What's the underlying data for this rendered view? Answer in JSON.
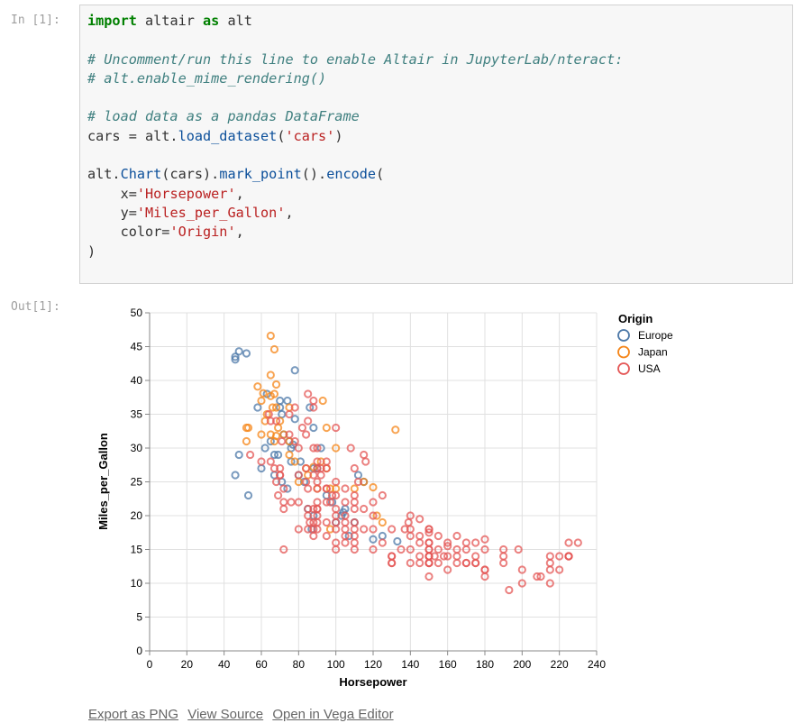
{
  "cell": {
    "in_prompt": "In [1]:",
    "out_prompt": "Out[1]:"
  },
  "code_lines": [
    [
      {
        "t": "import",
        "c": "kw"
      },
      {
        "t": " altair "
      },
      {
        "t": "as",
        "c": "kw"
      },
      {
        "t": " alt"
      }
    ],
    [],
    [
      {
        "t": "# Uncomment/run this line to enable Altair in JupyterLab/nteract:",
        "c": "cm"
      }
    ],
    [
      {
        "t": "# alt.enable_mime_rendering()",
        "c": "cm"
      }
    ],
    [],
    [
      {
        "t": "# load data as a pandas DataFrame",
        "c": "cm"
      }
    ],
    [
      {
        "t": "cars = alt."
      },
      {
        "t": "load_dataset",
        "c": "fn"
      },
      {
        "t": "("
      },
      {
        "t": "'cars'",
        "c": "st"
      },
      {
        "t": ")"
      }
    ],
    [],
    [
      {
        "t": "alt."
      },
      {
        "t": "Chart",
        "c": "fn"
      },
      {
        "t": "(cars)."
      },
      {
        "t": "mark_point",
        "c": "fn"
      },
      {
        "t": "()."
      },
      {
        "t": "encode",
        "c": "fn"
      },
      {
        "t": "("
      }
    ],
    [
      {
        "t": "    x="
      },
      {
        "t": "'Horsepower'",
        "c": "st"
      },
      {
        "t": ","
      }
    ],
    [
      {
        "t": "    y="
      },
      {
        "t": "'Miles_per_Gallon'",
        "c": "st"
      },
      {
        "t": ","
      }
    ],
    [
      {
        "t": "    color="
      },
      {
        "t": "'Origin'",
        "c": "st"
      },
      {
        "t": ","
      }
    ],
    [
      {
        "t": ")"
      }
    ]
  ],
  "links": {
    "export_png": "Export as PNG",
    "view_source": "View Source",
    "open_editor": "Open in Vega Editor"
  },
  "colors": {
    "Europe": "#4c78a8",
    "Japan": "#f58518",
    "USA": "#e45756"
  },
  "chart_data": {
    "type": "scatter",
    "xlabel": "Horsepower",
    "ylabel": "Miles_per_Gallon",
    "xlim": [
      0,
      240
    ],
    "ylim": [
      0,
      50
    ],
    "xticks": [
      0,
      20,
      40,
      60,
      80,
      100,
      120,
      140,
      160,
      180,
      200,
      220,
      240
    ],
    "yticks": [
      0,
      5,
      10,
      15,
      20,
      25,
      30,
      35,
      40,
      45,
      50
    ],
    "grid": true,
    "legend": {
      "title": "Origin",
      "placement": "top-right",
      "entries": [
        "Europe",
        "Japan",
        "USA"
      ]
    },
    "series": [
      {
        "name": "Europe",
        "points": [
          [
            46,
            43.5
          ],
          [
            48,
            44.3
          ],
          [
            46,
            43.1
          ],
          [
            52,
            44
          ],
          [
            78,
            41.5
          ],
          [
            46,
            26
          ],
          [
            48,
            29
          ],
          [
            53,
            23
          ],
          [
            58,
            36
          ],
          [
            60,
            27
          ],
          [
            62,
            30
          ],
          [
            65,
            31
          ],
          [
            67,
            26
          ],
          [
            69,
            29
          ],
          [
            70,
            36
          ],
          [
            70,
            37
          ],
          [
            71,
            25
          ],
          [
            72,
            32
          ],
          [
            74,
            24
          ],
          [
            75,
            31
          ],
          [
            76,
            28
          ],
          [
            76,
            30
          ],
          [
            77,
            30.5
          ],
          [
            78,
            34.3
          ],
          [
            80,
            26
          ],
          [
            81,
            28
          ],
          [
            83,
            25
          ],
          [
            85,
            21
          ],
          [
            86,
            36
          ],
          [
            87,
            18
          ],
          [
            88,
            20
          ],
          [
            90,
            27
          ],
          [
            95,
            23
          ],
          [
            98,
            22
          ],
          [
            100,
            19
          ],
          [
            103,
            20
          ],
          [
            104,
            20.5
          ],
          [
            105,
            21
          ],
          [
            107,
            17
          ],
          [
            110,
            19
          ],
          [
            112,
            26
          ],
          [
            115,
            25
          ],
          [
            120,
            16.5
          ],
          [
            125,
            17
          ],
          [
            133,
            16.2
          ],
          [
            88,
            27
          ],
          [
            92,
            30
          ],
          [
            74,
            37
          ],
          [
            63,
            38
          ],
          [
            67,
            29
          ],
          [
            71,
            35
          ],
          [
            88,
            33
          ]
        ]
      },
      {
        "name": "Japan",
        "points": [
          [
            65,
            46.6
          ],
          [
            67,
            44.6
          ],
          [
            65,
            40.8
          ],
          [
            68,
            39.4
          ],
          [
            58,
            39.1
          ],
          [
            61,
            38.1
          ],
          [
            67,
            38
          ],
          [
            65,
            37.7
          ],
          [
            60,
            37
          ],
          [
            68,
            36
          ],
          [
            75,
            36
          ],
          [
            70,
            34
          ],
          [
            69,
            33
          ],
          [
            52,
            33
          ],
          [
            53,
            33
          ],
          [
            60,
            32
          ],
          [
            65,
            32
          ],
          [
            67,
            31
          ],
          [
            68,
            31.8
          ],
          [
            75,
            31
          ],
          [
            62,
            34
          ],
          [
            63,
            35
          ],
          [
            72,
            32
          ],
          [
            78,
            28
          ],
          [
            80,
            25
          ],
          [
            84,
            27
          ],
          [
            88,
            27.2
          ],
          [
            90,
            24
          ],
          [
            92,
            28
          ],
          [
            95,
            27
          ],
          [
            97,
            24
          ],
          [
            100,
            24
          ],
          [
            110,
            24
          ],
          [
            115,
            25
          ],
          [
            120,
            24.2
          ],
          [
            122,
            20
          ],
          [
            125,
            19
          ],
          [
            132,
            32.7
          ],
          [
            52,
            31
          ],
          [
            97,
            18
          ],
          [
            95,
            33
          ],
          [
            100,
            30
          ],
          [
            93,
            37
          ],
          [
            75,
            29
          ],
          [
            66,
            36
          ],
          [
            85,
            26
          ]
        ]
      },
      {
        "name": "USA",
        "points": [
          [
            130,
            18
          ],
          [
            165,
            15
          ],
          [
            150,
            18
          ],
          [
            150,
            16
          ],
          [
            140,
            17
          ],
          [
            198,
            15
          ],
          [
            220,
            14
          ],
          [
            215,
            14
          ],
          [
            225,
            14
          ],
          [
            190,
            15
          ],
          [
            170,
            15
          ],
          [
            160,
            14
          ],
          [
            150,
            15
          ],
          [
            225,
            14
          ],
          [
            95,
            24
          ],
          [
            97,
            22
          ],
          [
            85,
            18
          ],
          [
            88,
            21
          ],
          [
            90,
            21
          ],
          [
            215,
            10
          ],
          [
            200,
            10
          ],
          [
            210,
            11
          ],
          [
            193,
            9
          ],
          [
            90,
            27
          ],
          [
            95,
            28
          ],
          [
            100,
            25
          ],
          [
            105,
            19
          ],
          [
            100,
            16
          ],
          [
            88,
            17
          ],
          [
            100,
            19
          ],
          [
            165,
            14
          ],
          [
            175,
            14
          ],
          [
            153,
            14
          ],
          [
            150,
            14
          ],
          [
            180,
            12
          ],
          [
            170,
            13
          ],
          [
            175,
            13
          ],
          [
            110,
            18
          ],
          [
            72,
            22
          ],
          [
            100,
            21
          ],
          [
            88,
            18
          ],
          [
            86,
            19
          ],
          [
            90,
            21
          ],
          [
            70,
            26
          ],
          [
            76,
            22
          ],
          [
            65,
            28
          ],
          [
            69,
            23
          ],
          [
            60,
            28
          ],
          [
            70,
            27
          ],
          [
            95,
            27
          ],
          [
            80,
            22
          ],
          [
            54,
            29
          ],
          [
            208,
            11
          ],
          [
            155,
            13
          ],
          [
            160,
            12
          ],
          [
            190,
            13
          ],
          [
            150,
            15
          ],
          [
            130,
            13
          ],
          [
            140,
            13
          ],
          [
            150,
            13
          ],
          [
            150,
            14
          ],
          [
            145,
            16
          ],
          [
            137,
            18
          ],
          [
            150,
            14
          ],
          [
            158,
            14
          ],
          [
            170,
            13
          ],
          [
            175,
            13
          ],
          [
            180,
            12
          ],
          [
            230,
            16
          ],
          [
            220,
            12
          ],
          [
            215,
            13
          ],
          [
            225,
            16
          ],
          [
            110,
            19
          ],
          [
            105,
            18
          ],
          [
            100,
            15
          ],
          [
            90,
            19
          ],
          [
            95,
            17
          ],
          [
            100,
            20
          ],
          [
            105,
            20
          ],
          [
            110,
            17
          ],
          [
            85,
            21
          ],
          [
            88,
            19
          ],
          [
            90,
            18
          ],
          [
            110,
            22
          ],
          [
            125,
            16
          ],
          [
            150,
            13
          ],
          [
            135,
            15
          ],
          [
            140,
            15
          ],
          [
            145,
            14
          ],
          [
            155,
            15
          ],
          [
            160,
            16
          ],
          [
            175,
            16
          ],
          [
            180,
            15
          ],
          [
            145,
            13
          ],
          [
            160,
            15.5
          ],
          [
            150,
            13
          ],
          [
            130,
            14
          ],
          [
            72,
            15
          ],
          [
            85,
            20
          ],
          [
            110,
            16
          ],
          [
            105,
            17
          ],
          [
            90,
            20
          ],
          [
            95,
            19
          ],
          [
            80,
            18
          ],
          [
            72,
            21
          ],
          [
            85,
            24
          ],
          [
            88,
            26
          ],
          [
            90,
            25
          ],
          [
            95,
            24
          ],
          [
            100,
            23
          ],
          [
            110,
            23
          ],
          [
            112,
            25
          ],
          [
            120,
            20
          ],
          [
            110,
            21
          ],
          [
            139,
            19
          ],
          [
            140,
            18
          ],
          [
            145,
            19.5
          ],
          [
            150,
            17.5
          ],
          [
            165,
            17
          ],
          [
            180,
            16.5
          ],
          [
            115,
            18
          ],
          [
            90,
            22
          ],
          [
            120,
            18
          ],
          [
            70,
            26
          ],
          [
            75,
            32
          ],
          [
            80,
            30
          ],
          [
            75,
            35
          ],
          [
            88,
            36
          ],
          [
            85,
            38
          ],
          [
            67,
            27
          ],
          [
            78,
            31
          ],
          [
            105,
            24
          ],
          [
            92,
            27
          ],
          [
            90,
            28
          ],
          [
            98,
            23
          ],
          [
            116,
            28
          ],
          [
            120,
            22
          ],
          [
            68,
            25
          ],
          [
            72,
            24
          ],
          [
            80,
            26
          ],
          [
            84,
            27
          ],
          [
            88,
            30
          ],
          [
            92,
            26
          ],
          [
            84,
            32
          ],
          [
            82,
            33
          ],
          [
            85,
            34
          ],
          [
            90,
            30
          ],
          [
            108,
            30
          ],
          [
            110,
            27
          ],
          [
            115,
            29
          ],
          [
            100,
            33
          ],
          [
            88,
            37
          ],
          [
            78,
            36
          ],
          [
            71,
            31
          ],
          [
            68,
            34
          ],
          [
            65,
            34
          ],
          [
            64,
            35
          ],
          [
            84,
            25
          ],
          [
            90,
            24
          ],
          [
            95,
            22
          ],
          [
            105,
            22
          ],
          [
            115,
            21
          ],
          [
            125,
            23
          ],
          [
            140,
            20
          ],
          [
            150,
            18
          ],
          [
            155,
            17
          ],
          [
            170,
            16
          ],
          [
            145,
            17
          ],
          [
            150,
            16
          ],
          [
            120,
            15
          ],
          [
            100,
            18
          ],
          [
            105,
            16
          ],
          [
            110,
            15
          ],
          [
            130,
            14
          ],
          [
            165,
            13
          ],
          [
            190,
            14
          ],
          [
            200,
            12
          ],
          [
            215,
            12
          ],
          [
            225,
            14
          ],
          [
            180,
            11
          ],
          [
            150,
            11
          ],
          [
            130,
            13
          ]
        ]
      }
    ]
  }
}
